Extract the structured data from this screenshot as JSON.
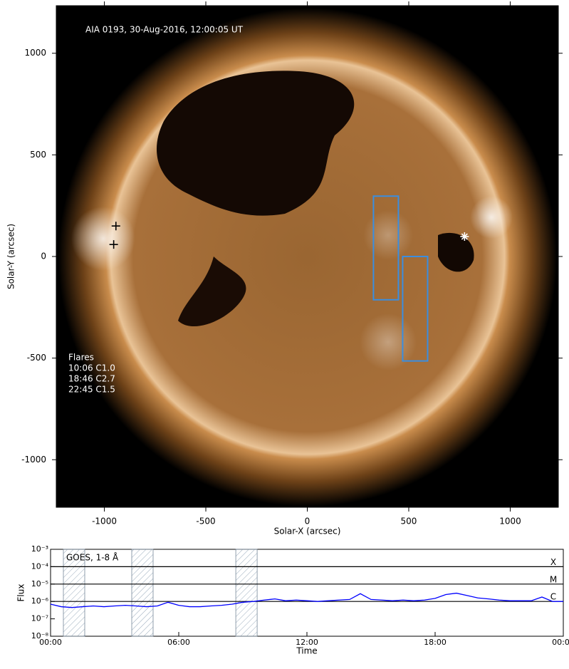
{
  "chart_data": [
    {
      "type": "image",
      "title": "AIA 0193, 30-Aug-2016, 12:00:05 UT",
      "x_label": "Solar-X (arcsec)",
      "y_label": "Solar-Y (arcsec)",
      "xlim": [
        -1237,
        1237
      ],
      "ylim": [
        -1234,
        1234
      ],
      "xticks": [
        -1000,
        -500,
        0,
        500,
        1000
      ],
      "yticks": [
        -1000,
        -500,
        0,
        500,
        1000
      ],
      "annotation": {
        "title": "Flares",
        "lines": [
          "10:06 C1.0",
          "18:46 C2.7",
          "22:45 C1.5"
        ]
      },
      "box_color": "#3a8ee0",
      "boxes": [
        {
          "x": [
            326,
            449
          ],
          "y": [
            -213,
            297
          ]
        },
        {
          "x": [
            470,
            593
          ],
          "y": [
            -514,
            0
          ]
        }
      ],
      "markers": [
        {
          "x": -943,
          "y": 150,
          "color": "#000000"
        },
        {
          "x": -954,
          "y": 59,
          "color": "#000000"
        },
        {
          "x": 775,
          "y": 98,
          "color": "#ffffff"
        }
      ]
    },
    {
      "type": "line",
      "x_label": "Time",
      "y_label": "Flux",
      "log_y": true,
      "xlim": [
        0,
        24
      ],
      "xticks": [
        {
          "value": 0,
          "label": "00:00"
        },
        {
          "value": 6,
          "label": "06:00"
        },
        {
          "value": 12,
          "label": "12:00"
        },
        {
          "value": 18,
          "label": "18:00"
        },
        {
          "value": 24,
          "label": "00:00"
        }
      ],
      "ylim": [
        1e-08,
        0.001
      ],
      "yticks": [
        {
          "value": 1e-08,
          "label": "10⁻⁸"
        },
        {
          "value": 1e-07,
          "label": "10⁻⁷"
        },
        {
          "value": 1e-06,
          "label": "10⁻⁶"
        },
        {
          "value": 1e-05,
          "label": "10⁻⁵"
        },
        {
          "value": 0.0001,
          "label": "10⁻⁴"
        },
        {
          "value": 0.001,
          "label": "10⁻³"
        }
      ],
      "levels": [
        {
          "value": 0.0001,
          "label": "X"
        },
        {
          "value": 1e-05,
          "label": "M"
        },
        {
          "value": 1e-06,
          "label": "C"
        }
      ],
      "shaded": [
        [
          0.6,
          1.6
        ],
        [
          3.8,
          4.8
        ],
        [
          8.67,
          9.67
        ]
      ],
      "x": [
        0,
        0.5,
        1,
        1.5,
        2,
        2.5,
        3,
        3.5,
        4,
        4.5,
        5,
        5.5,
        6,
        6.5,
        7,
        7.5,
        8,
        8.5,
        9,
        9.5,
        10,
        10.5,
        11,
        11.5,
        12,
        12.5,
        13,
        13.5,
        14,
        14.5,
        15,
        15.5,
        16,
        16.5,
        17,
        17.5,
        18,
        18.5,
        19,
        19.5,
        20,
        20.5,
        21,
        21.5,
        22,
        22.5,
        23,
        23.5,
        24
      ],
      "series": [
        {
          "name": "GOES, 1-8 Å",
          "color": "#0000ff",
          "values": [
            7e-07,
            5e-07,
            4.5e-07,
            5e-07,
            5.5e-07,
            5e-07,
            5.5e-07,
            6e-07,
            5.5e-07,
            5e-07,
            5.5e-07,
            9e-07,
            6e-07,
            5e-07,
            5e-07,
            5.5e-07,
            6e-07,
            7e-07,
            9e-07,
            1e-06,
            1.2e-06,
            1.4e-06,
            1.1e-06,
            1.2e-06,
            1.1e-06,
            1e-06,
            1.1e-06,
            1.2e-06,
            1.3e-06,
            2.8e-06,
            1.3e-06,
            1.2e-06,
            1.1e-06,
            1.2e-06,
            1.1e-06,
            1.2e-06,
            1.5e-06,
            2.5e-06,
            3e-06,
            2.2e-06,
            1.6e-06,
            1.4e-06,
            1.2e-06,
            1.1e-06,
            1.1e-06,
            1.1e-06,
            1.8e-06,
            1e-06,
            1e-06
          ]
        }
      ]
    }
  ]
}
